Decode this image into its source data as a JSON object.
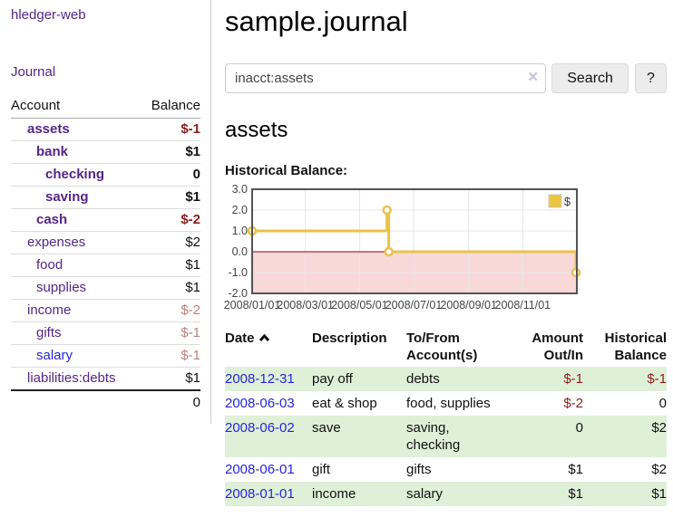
{
  "sidebar": {
    "brand": "hledger-web",
    "nav": {
      "journal": "Journal"
    },
    "accounts_table": {
      "col_account": "Account",
      "col_balance": "Balance",
      "rows": [
        {
          "name": "assets",
          "balance": "$-1",
          "depth": 1,
          "in_filter": true,
          "balance_tone": "neg-strong",
          "link_color": "purple"
        },
        {
          "name": "bank",
          "balance": "$1",
          "depth": 2,
          "in_filter": true,
          "balance_tone": "pos",
          "link_color": "purple"
        },
        {
          "name": "checking",
          "balance": "0",
          "depth": 3,
          "in_filter": true,
          "balance_tone": "pos",
          "link_color": "purple"
        },
        {
          "name": "saving",
          "balance": "$1",
          "depth": 3,
          "in_filter": true,
          "balance_tone": "pos",
          "link_color": "purple"
        },
        {
          "name": "cash",
          "balance": "$-2",
          "depth": 2,
          "in_filter": true,
          "balance_tone": "neg-strong",
          "link_color": "purple"
        },
        {
          "name": "expenses",
          "balance": "$2",
          "depth": 1,
          "in_filter": false,
          "balance_tone": "pos",
          "link_color": "purple"
        },
        {
          "name": "food",
          "balance": "$1",
          "depth": 2,
          "in_filter": false,
          "balance_tone": "pos",
          "link_color": "purple"
        },
        {
          "name": "supplies",
          "balance": "$1",
          "depth": 2,
          "in_filter": false,
          "balance_tone": "pos",
          "link_color": "purple"
        },
        {
          "name": "income",
          "balance": "$-2",
          "depth": 1,
          "in_filter": false,
          "balance_tone": "neg-faded",
          "link_color": "purple"
        },
        {
          "name": "gifts",
          "balance": "$-1",
          "depth": 2,
          "in_filter": false,
          "balance_tone": "neg-faded",
          "link_color": "purple"
        },
        {
          "name": "salary",
          "balance": "$-1",
          "depth": 2,
          "in_filter": false,
          "balance_tone": "neg-faded",
          "link_color": "blue"
        },
        {
          "name": "liabilities:debts",
          "balance": "$1",
          "depth": 1,
          "in_filter": false,
          "balance_tone": "pos",
          "link_color": "purple"
        }
      ],
      "total": "0"
    }
  },
  "main": {
    "title": "sample.journal",
    "search": {
      "value": "inacct:assets",
      "clear_icon": "×",
      "search_label": "Search",
      "help_label": "?"
    },
    "account_heading": "assets",
    "chart_heading": "Historical Balance:"
  },
  "chart_data": {
    "type": "line",
    "title": "Historical Balance:",
    "step": true,
    "series": [
      {
        "name": "$",
        "color": "#e9c24a",
        "points": [
          [
            "2008-01-01",
            1
          ],
          [
            "2008-06-01",
            2
          ],
          [
            "2008-06-03",
            0
          ],
          [
            "2008-12-31",
            -1
          ]
        ]
      }
    ],
    "x_range": [
      "2008-01-01",
      "2009-01-01"
    ],
    "x_ticks": [
      {
        "date": "2008-01-01",
        "label": "2008/01/01"
      },
      {
        "date": "2008-03-01",
        "label": "2008/03/01"
      },
      {
        "date": "2008-05-01",
        "label": "2008/05/01"
      },
      {
        "date": "2008-07-01",
        "label": "2008/07/01"
      },
      {
        "date": "2008-09-01",
        "label": "2008/09/01"
      },
      {
        "date": "2008-11-01",
        "label": "2008/11/01"
      }
    ],
    "y_ticks": [
      "3.0",
      "2.0",
      "1.0",
      "0.0",
      "-1.0",
      "-2.0"
    ],
    "ylim": [
      -2,
      3
    ],
    "grid": true,
    "legend": {
      "label": "$",
      "position": "top-right",
      "swatch_color": "#eac63f"
    },
    "negative_shade_color": "#f9d8d8",
    "zero_line_color": "#8b0000",
    "plot_border_color": "#545454"
  },
  "register": {
    "headers": {
      "date": "Date",
      "description": "Description",
      "accounts": "To/From Account(s)",
      "amount": "Amount Out/In",
      "balance": "Historical Balance"
    },
    "rows": [
      {
        "date": "2008-12-31",
        "description": "pay off",
        "accounts": "debts",
        "amount": "$-1",
        "amount_neg": true,
        "balance": "$-1",
        "balance_neg": true
      },
      {
        "date": "2008-06-03",
        "description": "eat & shop",
        "accounts": "food, supplies",
        "amount": "$-2",
        "amount_neg": true,
        "balance": "0",
        "balance_neg": false
      },
      {
        "date": "2008-06-02",
        "description": "save",
        "accounts": "saving, checking",
        "amount": "0",
        "amount_neg": false,
        "balance": "$2",
        "balance_neg": false
      },
      {
        "date": "2008-06-01",
        "description": "gift",
        "accounts": "gifts",
        "amount": "$1",
        "amount_neg": false,
        "balance": "$2",
        "balance_neg": false
      },
      {
        "date": "2008-01-01",
        "description": "income",
        "accounts": "salary",
        "amount": "$1",
        "amount_neg": false,
        "balance": "$1",
        "balance_neg": false
      }
    ]
  }
}
